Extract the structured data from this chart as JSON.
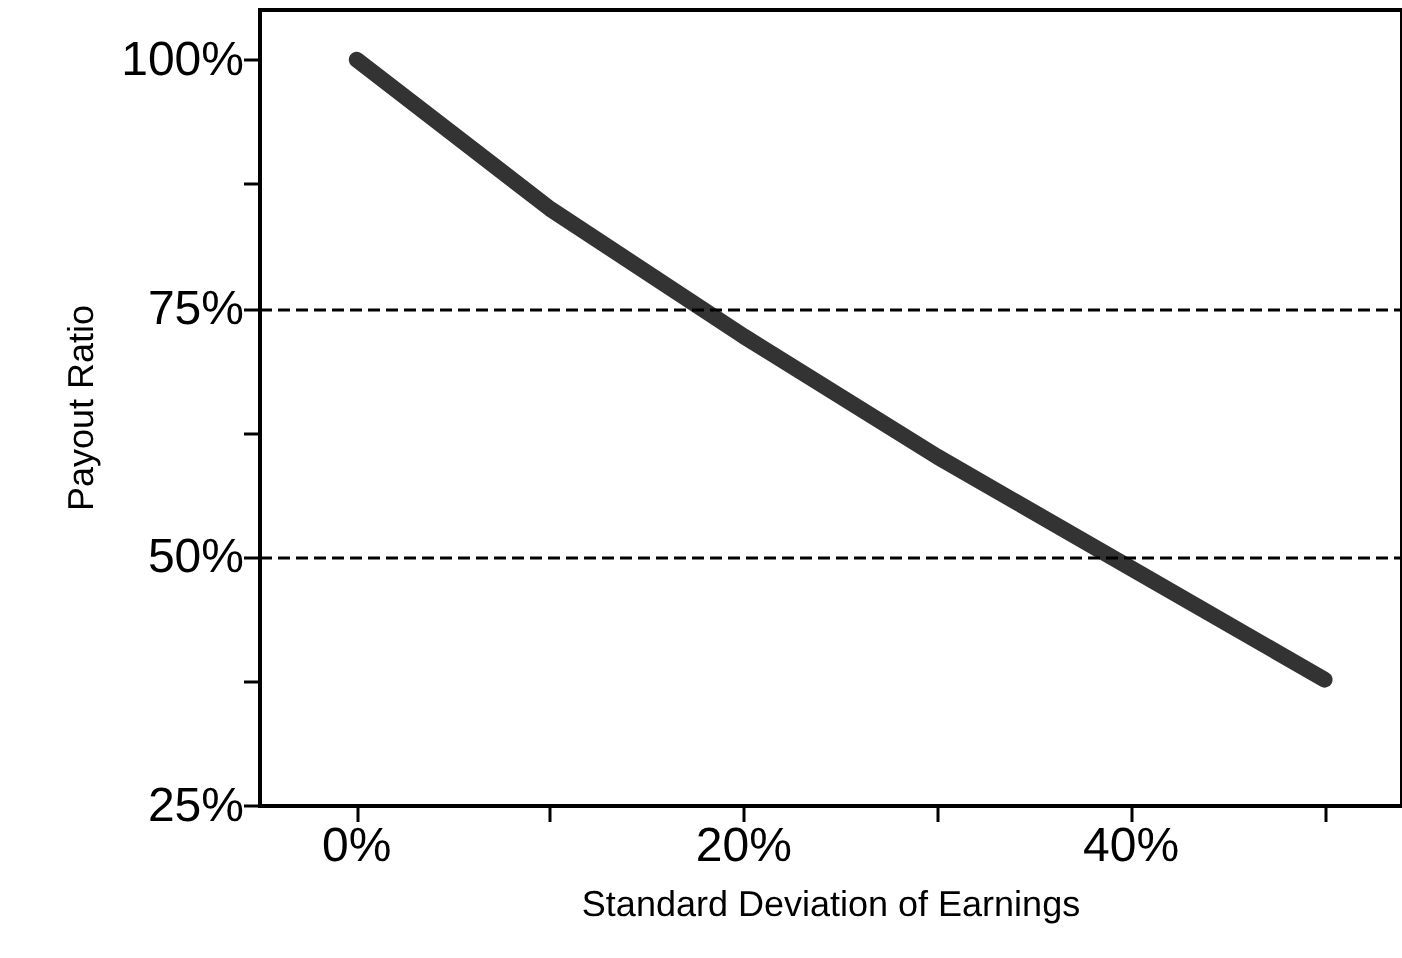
{
  "chart_data": {
    "type": "line",
    "xlabel": "Standard Deviation of Earnings",
    "ylabel": "Payout Ratio",
    "x": [
      0,
      10,
      20,
      30,
      40,
      50
    ],
    "series": [
      {
        "color": "#333333",
        "values": [
          100,
          85,
          72.2,
          60.1,
          48.9,
          37.7
        ]
      }
    ],
    "xlim": [
      -5,
      54
    ],
    "xticks": [
      {
        "value": 0,
        "label": "0%"
      },
      {
        "value": 10,
        "label": null
      },
      {
        "value": 20,
        "label": "20%"
      },
      {
        "value": 30,
        "label": null
      },
      {
        "value": 40,
        "label": "40%"
      },
      {
        "value": 50,
        "label": null
      }
    ],
    "ylim": [
      25,
      105
    ],
    "yticks": [
      {
        "value": 25,
        "label": "25%"
      },
      {
        "value": 37.5,
        "label": null
      },
      {
        "value": 50,
        "label": "50%"
      },
      {
        "value": 62.5,
        "label": null
      },
      {
        "value": 75,
        "label": "75%"
      },
      {
        "value": 87.5,
        "label": null
      },
      {
        "value": 100,
        "label": "100%"
      }
    ],
    "ref_lines": [
      {
        "axis": "y",
        "value": 75,
        "label": null,
        "line_style": "dashed",
        "color": "#000000"
      },
      {
        "axis": "y",
        "value": 50,
        "label": null,
        "line_style": "dashed",
        "color": "#000000"
      }
    ],
    "grid": false,
    "marker": "none",
    "line_style": "solid"
  }
}
